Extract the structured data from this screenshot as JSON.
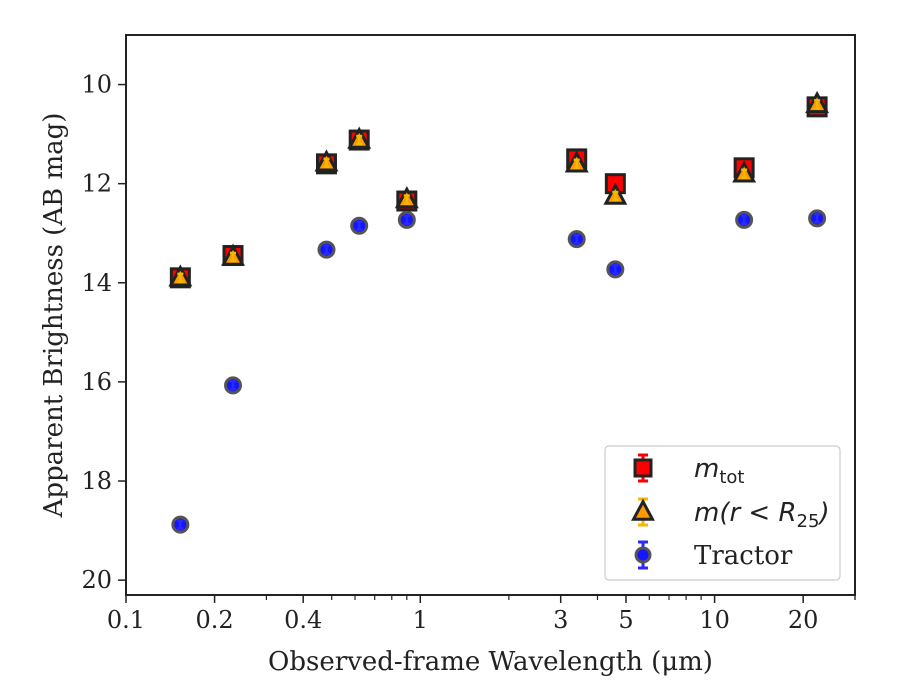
{
  "chart_data": {
    "type": "scatter",
    "title": "",
    "xlabel": "Observed-frame Wavelength (μm)",
    "ylabel": "Apparent Brightness (AB mag)",
    "x_scale": "log",
    "xlim": [
      0.1,
      30
    ],
    "ylim": [
      20.3,
      9.0
    ],
    "y_inverted": true,
    "x_ticks": [
      {
        "value": 0.1,
        "label": "0.1"
      },
      {
        "value": 0.2,
        "label": "0.2"
      },
      {
        "value": 0.4,
        "label": "0.4"
      },
      {
        "value": 1,
        "label": "1"
      },
      {
        "value": 3,
        "label": "3"
      },
      {
        "value": 5,
        "label": "5"
      },
      {
        "value": 10,
        "label": "10"
      },
      {
        "value": 20,
        "label": "20"
      }
    ],
    "y_ticks": [
      {
        "value": 10,
        "label": "10"
      },
      {
        "value": 12,
        "label": "12"
      },
      {
        "value": 14,
        "label": "14"
      },
      {
        "value": 16,
        "label": "16"
      },
      {
        "value": 18,
        "label": "18"
      },
      {
        "value": 20,
        "label": "20"
      }
    ],
    "grid": false,
    "legend_position": "bottom-right",
    "series": [
      {
        "name": "m_tot",
        "legend_main": "m",
        "legend_sub": "tot",
        "legend_rest": "",
        "marker": "square",
        "color": "#ff0000",
        "edge": "#222222",
        "err_color": "#ff0000",
        "points": [
          {
            "x": 0.153,
            "y": 13.9
          },
          {
            "x": 0.231,
            "y": 13.45
          },
          {
            "x": 0.48,
            "y": 11.6
          },
          {
            "x": 0.62,
            "y": 11.12
          },
          {
            "x": 0.9,
            "y": 12.35
          },
          {
            "x": 3.4,
            "y": 11.5
          },
          {
            "x": 4.6,
            "y": 12.0
          },
          {
            "x": 12.6,
            "y": 11.68
          },
          {
            "x": 22.3,
            "y": 10.45
          }
        ]
      },
      {
        "name": "m(r < R_25)",
        "legend_main": "m(r < R",
        "legend_sub": "25",
        "legend_rest": ")",
        "marker": "triangle",
        "color": "#ff9900",
        "edge": "#222222",
        "err_color": "#f5b800",
        "points": [
          {
            "x": 0.153,
            "y": 13.9
          },
          {
            "x": 0.231,
            "y": 13.48
          },
          {
            "x": 0.48,
            "y": 11.58
          },
          {
            "x": 0.62,
            "y": 11.12
          },
          {
            "x": 0.9,
            "y": 12.32
          },
          {
            "x": 3.4,
            "y": 11.6
          },
          {
            "x": 4.6,
            "y": 12.25
          },
          {
            "x": 12.6,
            "y": 11.8
          },
          {
            "x": 22.3,
            "y": 10.4
          }
        ]
      },
      {
        "name": "Tractor",
        "legend_main": "Tractor",
        "legend_sub": "",
        "legend_rest": "",
        "marker": "circle",
        "color": "#1515ff",
        "edge": "#555555",
        "err_color": "#2a2aff",
        "points": [
          {
            "x": 0.153,
            "y": 18.88
          },
          {
            "x": 0.231,
            "y": 16.07
          },
          {
            "x": 0.48,
            "y": 13.33
          },
          {
            "x": 0.62,
            "y": 12.85
          },
          {
            "x": 0.9,
            "y": 12.73
          },
          {
            "x": 3.4,
            "y": 13.12
          },
          {
            "x": 4.6,
            "y": 13.73
          },
          {
            "x": 12.6,
            "y": 12.73
          },
          {
            "x": 22.3,
            "y": 12.7
          }
        ]
      }
    ]
  }
}
